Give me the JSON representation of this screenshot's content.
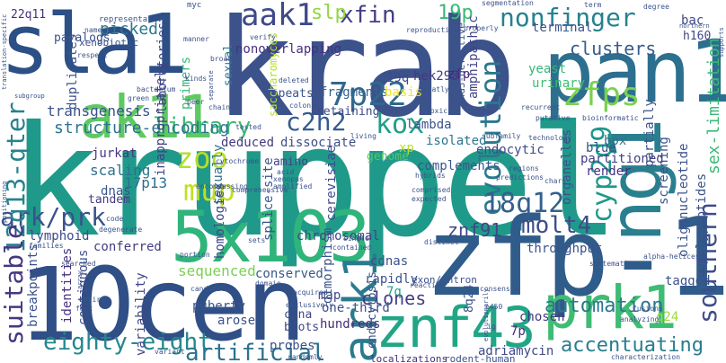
{
  "words": [
    {
      "text": "krab",
      "color": "#3b5289"
    },
    {
      "text": "kruppel",
      "color": "#1f9a8a"
    },
    {
      "text": "sla1",
      "color": "#2c4f86"
    },
    {
      "text": "10cen",
      "color": "#2f4f86"
    },
    {
      "text": "zfp-1",
      "color": "#2f5c8a"
    },
    {
      "text": "pan1",
      "color": "#2d6f8e"
    },
    {
      "text": "ak11",
      "color": "#5ec962"
    },
    {
      "text": "ng1",
      "color": "#2a7f8e"
    },
    {
      "text": "5x103",
      "color": "#2fb47c"
    },
    {
      "text": "znf43",
      "color": "#21a685"
    },
    {
      "text": "prk1",
      "color": "#3fbc73"
    },
    {
      "text": "ark1",
      "color": "#2b7a8e"
    },
    {
      "text": "aak1",
      "color": "#3e4a89"
    },
    {
      "text": "xfin",
      "color": "#433e85"
    },
    {
      "text": "slp",
      "color": "#90d743"
    },
    {
      "text": "nonfinger",
      "color": "#26828e"
    },
    {
      "text": "19p",
      "color": "#3aba76"
    },
    {
      "text": "7p22",
      "color": "#31688e"
    },
    {
      "text": "zfps",
      "color": "#7ad151"
    },
    {
      "text": "kox",
      "color": "#1f9e89"
    },
    {
      "text": "c2h2",
      "color": "#365c8d"
    },
    {
      "text": "library",
      "color": "#3bbb75"
    },
    {
      "text": "zoo",
      "color": "#b5de2b"
    },
    {
      "text": "mup",
      "color": "#c2df23"
    },
    {
      "text": "evolution",
      "color": "#2a788e"
    },
    {
      "text": "cyp2d9",
      "color": "#1f988b"
    },
    {
      "text": "18q12",
      "color": "#35608d"
    },
    {
      "text": "ark/prk",
      "color": "#3b528b"
    },
    {
      "text": "12q13-qter",
      "color": "#26828e"
    },
    {
      "text": "molt4",
      "color": "#3e4c8a"
    },
    {
      "text": "znf91",
      "color": "#414487"
    },
    {
      "text": "suitable",
      "color": "#453781"
    },
    {
      "text": "eighty-eight",
      "color": "#23888e"
    },
    {
      "text": "artificial",
      "color": "#2c728e"
    },
    {
      "text": "southern",
      "color": "#3e4c8a"
    },
    {
      "text": "automation",
      "color": "#2a788e"
    },
    {
      "text": "accentuating",
      "color": "#287d8e"
    },
    {
      "text": "clones",
      "color": "#433e85"
    },
    {
      "text": "sex-limitation",
      "color": "#3aba76"
    },
    {
      "text": "picked",
      "color": "#2a788e"
    },
    {
      "text": "clusters",
      "color": "#365c8d"
    },
    {
      "text": "22q11",
      "color": "#46327e"
    },
    {
      "text": "structure-encoding",
      "color": "#2c738e"
    },
    {
      "text": "transgenesis",
      "color": "#3b528b"
    },
    {
      "text": "hek293",
      "color": "#453882"
    },
    {
      "text": "19q",
      "color": "#3f4889"
    },
    {
      "text": "fragments",
      "color": "#33638d"
    },
    {
      "text": "nonoverlapping",
      "color": "#46307e"
    },
    {
      "text": "inappropriately",
      "color": "#424086"
    },
    {
      "text": "deduced",
      "color": "#443983"
    },
    {
      "text": "dissociate",
      "color": "#3d4e8a"
    },
    {
      "text": "lambda",
      "color": "#3b528b"
    },
    {
      "text": "isolated",
      "color": "#2a768e"
    },
    {
      "text": "xp",
      "color": "#b8de29"
    },
    {
      "text": "zfp",
      "color": "#482475"
    },
    {
      "text": "basis",
      "color": "#f1e51d"
    },
    {
      "text": "amphipathic",
      "color": "#414487"
    },
    {
      "text": "yeast",
      "color": "#35b779"
    },
    {
      "text": "urinary",
      "color": "#3fbc73"
    },
    {
      "text": "terminal",
      "color": "#3b528b"
    },
    {
      "text": "bac",
      "color": "#3e4a89"
    },
    {
      "text": "h160",
      "color": "#404688"
    },
    {
      "text": "sexually",
      "color": "#2c728e"
    },
    {
      "text": "scaling",
      "color": "#2d708e"
    },
    {
      "text": "17p13",
      "color": "#2e6e8e"
    },
    {
      "text": "dnas",
      "color": "#39568c"
    },
    {
      "text": "tandem",
      "color": "#443983"
    },
    {
      "text": "jurkat",
      "color": "#453781"
    },
    {
      "text": "lymphoid",
      "color": "#3e4a89"
    },
    {
      "text": "conferred",
      "color": "#433d84"
    },
    {
      "text": "sequenced",
      "color": "#7ad151"
    },
    {
      "text": "conserved",
      "color": "#38588c"
    },
    {
      "text": "chromosomal",
      "color": "#3f4788"
    },
    {
      "text": "amino",
      "color": "#414487"
    },
    {
      "text": "genome",
      "color": "#56c667"
    },
    {
      "text": "complements",
      "color": "#39568c"
    },
    {
      "text": "endocytic",
      "color": "#3e4a89"
    },
    {
      "text": "partitioned",
      "color": "#433e85"
    },
    {
      "text": "blue",
      "color": "#3b528b"
    },
    {
      "text": "box",
      "color": "#2c728e"
    },
    {
      "text": "render",
      "color": "#46327e"
    },
    {
      "text": "throughput",
      "color": "#3b528b"
    },
    {
      "text": "rapidly",
      "color": "#3b528b"
    },
    {
      "text": "cdnas",
      "color": "#3b528b"
    },
    {
      "text": "7q",
      "color": "#1fa187"
    },
    {
      "text": "tagged",
      "color": "#3b528b"
    },
    {
      "text": "chosen",
      "color": "#453882"
    },
    {
      "text": "7p",
      "color": "#46307e"
    },
    {
      "text": "hundreds",
      "color": "#472d7b"
    },
    {
      "text": "probes",
      "color": "#3b528b"
    },
    {
      "text": "cdna",
      "color": "#3e4989"
    },
    {
      "text": "blots",
      "color": "#3f4788"
    },
    {
      "text": "arose",
      "color": "#3b528b"
    },
    {
      "text": "puberty",
      "color": "#3b528b"
    },
    {
      "text": "map",
      "color": "#3f4889"
    },
    {
      "text": "one-third",
      "color": "#3b528b"
    },
    {
      "text": "adriamycin",
      "color": "#3e4a89"
    },
    {
      "text": "rodent-human",
      "color": "#3b528b"
    },
    {
      "text": "localizations",
      "color": "#46307e"
    },
    {
      "text": "identities",
      "color": "#46307e"
    },
    {
      "text": "contiguous",
      "color": "#3e4c8a"
    },
    {
      "text": "breakpoints",
      "color": "#3b528b"
    },
    {
      "text": "variability",
      "color": "#3f4788"
    },
    {
      "text": "homologies",
      "color": "#3f4788"
    },
    {
      "text": "primers",
      "color": "#38b977"
    },
    {
      "text": "laboratories",
      "color": "#3e4a89"
    },
    {
      "text": "duplicates",
      "color": "#3b528b"
    },
    {
      "text": "paralogs",
      "color": "#3b528b"
    },
    {
      "text": "xenobiotic",
      "color": "#3b528b"
    },
    {
      "text": "representative",
      "color": "#3b528b"
    },
    {
      "text": "sexual",
      "color": "#2a788e"
    },
    {
      "text": "repeats",
      "color": "#3b528b"
    },
    {
      "text": "retaining",
      "color": "#3e4a89"
    },
    {
      "text": "saccharomyces",
      "color": "#b5de2b"
    },
    {
      "text": "end3-defective",
      "color": "#3b528b"
    },
    {
      "text": "cerevisiae",
      "color": "#3e4a89"
    },
    {
      "text": "dimorphism",
      "color": "#3b528b"
    },
    {
      "text": "splice-site",
      "color": "#3b528b"
    },
    {
      "text": "oligonucleotide",
      "color": "#3b528b"
    },
    {
      "text": "organelles",
      "color": "#3b528b"
    },
    {
      "text": "polypeptides",
      "color": "#3b528b"
    },
    {
      "text": "screening",
      "color": "#3b528b"
    },
    {
      "text": "partially",
      "color": "#3b528b"
    },
    {
      "text": "exon/intron",
      "color": "#3b528b"
    },
    {
      "text": "endocytosis",
      "color": "#3b528b"
    },
    {
      "text": "8q24",
      "color": "#3b528b"
    },
    {
      "text": "q24",
      "color": "#a0da39"
    },
    {
      "text": "segmentation",
      "color": "#3b528b"
    },
    {
      "text": "myc",
      "color": "#3b528b"
    },
    {
      "text": "term",
      "color": "#3b528b"
    },
    {
      "text": "degree",
      "color": "#3b528b"
    },
    {
      "text": "reproduction",
      "color": "#3b528b"
    },
    {
      "text": "properly",
      "color": "#3b528b"
    },
    {
      "text": "northern",
      "color": "#3b528b"
    },
    {
      "text": "translation-specific",
      "color": "#3b528b"
    },
    {
      "text": "supports",
      "color": "#3b528b"
    },
    {
      "text": "named",
      "color": "#3b528b"
    },
    {
      "text": "respect",
      "color": "#3b528b"
    },
    {
      "text": "manner",
      "color": "#3b528b"
    },
    {
      "text": "kinds",
      "color": "#3b528b"
    },
    {
      "text": "recurrent",
      "color": "#3b528b"
    },
    {
      "text": "toxicity",
      "color": "#3b528b"
    },
    {
      "text": "bioinformatic",
      "color": "#3b528b"
    },
    {
      "text": "putative",
      "color": "#3b528b"
    },
    {
      "text": "subfamily",
      "color": "#3b528b"
    },
    {
      "text": "technology",
      "color": "#3b528b"
    },
    {
      "text": "living",
      "color": "#3b528b"
    },
    {
      "text": "deleted",
      "color": "#3b528b"
    },
    {
      "text": "colonies",
      "color": "#3b528b"
    },
    {
      "text": "subgroup",
      "color": "#3b528b"
    },
    {
      "text": "chain",
      "color": "#3b528b"
    },
    {
      "text": "separate",
      "color": "#3b528b"
    },
    {
      "text": "hybrids",
      "color": "#3b528b"
    },
    {
      "text": "comprised",
      "color": "#3b528b"
    },
    {
      "text": "expected",
      "color": "#3b528b"
    },
    {
      "text": "regions",
      "color": "#3b528b"
    },
    {
      "text": "cytochrome",
      "color": "#3b528b"
    },
    {
      "text": "acid",
      "color": "#3b528b"
    },
    {
      "text": "xenopus",
      "color": "#3b528b"
    },
    {
      "text": "code",
      "color": "#3b528b"
    },
    {
      "text": "degenerate",
      "color": "#3b528b"
    },
    {
      "text": "encompassing",
      "color": "#3b528b"
    },
    {
      "text": "comprehensive",
      "color": "#3b528b"
    },
    {
      "text": "amplified",
      "color": "#3b528b"
    },
    {
      "text": "predictions",
      "color": "#3b528b"
    },
    {
      "text": "chars",
      "color": "#3b528b"
    },
    {
      "text": "positioning",
      "color": "#3b528b"
    },
    {
      "text": "families",
      "color": "#3b528b"
    },
    {
      "text": "sets",
      "color": "#3b528b"
    },
    {
      "text": "single",
      "color": "#3b528b"
    },
    {
      "text": "contained",
      "color": "#3b528b"
    },
    {
      "text": "distinct",
      "color": "#3b528b"
    },
    {
      "text": "alpha-helices",
      "color": "#3b528b"
    },
    {
      "text": "systematic",
      "color": "#3b528b"
    },
    {
      "text": "rasters",
      "color": "#3b528b"
    },
    {
      "text": "searched",
      "color": "#3b528b"
    },
    {
      "text": "array",
      "color": "#3b528b"
    },
    {
      "text": "entire",
      "color": "#3b528b"
    },
    {
      "text": "fast",
      "color": "#3b528b"
    },
    {
      "text": "candidate",
      "color": "#3b528b"
    },
    {
      "text": "domain",
      "color": "#3b528b"
    },
    {
      "text": "acquired",
      "color": "#3b528b"
    },
    {
      "text": "exclusively",
      "color": "#3b528b"
    },
    {
      "text": "reaction",
      "color": "#3b528b"
    },
    {
      "text": "consensus",
      "color": "#3b528b"
    },
    {
      "text": "evolutionarily",
      "color": "#3b528b"
    },
    {
      "text": "p450",
      "color": "#3b528b"
    },
    {
      "text": "fusions",
      "color": "#3b528b"
    },
    {
      "text": "analyzing",
      "color": "#3b528b"
    },
    {
      "text": "randomly",
      "color": "#3b528b"
    },
    {
      "text": "characterization",
      "color": "#3b528b"
    },
    {
      "text": "variant",
      "color": "#3b528b"
    },
    {
      "text": "broad",
      "color": "#3b528b"
    },
    {
      "text": "portion",
      "color": "#3b528b"
    },
    {
      "text": "peer",
      "color": "#3b528b"
    },
    {
      "text": "tested",
      "color": "#3b528b"
    },
    {
      "text": "greatly",
      "color": "#3b528b"
    },
    {
      "text": "ig",
      "color": "#3b528b"
    },
    {
      "text": "bacterium",
      "color": "#3b528b"
    },
    {
      "text": "green",
      "color": "#3b528b"
    },
    {
      "text": "verify",
      "color": "#3b528b"
    }
  ]
}
